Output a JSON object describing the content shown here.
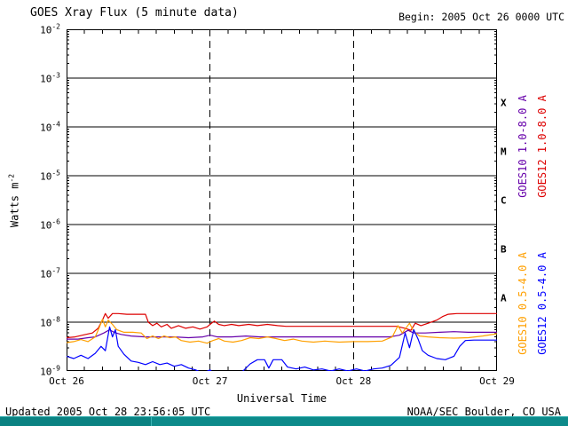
{
  "header": {
    "title": "GOES Xray Flux (5 minute data)",
    "begin": "Begin: 2005 Oct 26 0000 UTC"
  },
  "footer": {
    "updated": "Updated 2005 Oct 28 23:56:05 UTC",
    "credit": "NOAA/SEC Boulder, CO USA"
  },
  "colors": {
    "background": "#ffffff",
    "text": "#000000",
    "grid": "#000000",
    "taskbar": "#0d8a8a"
  },
  "chart_data": {
    "type": "line",
    "title": "GOES Xray Flux (5 minute data)",
    "xlabel": "Universal Time",
    "ylabel": "Watts m^-2",
    "ylabel_base": "Watts m",
    "ylabel_exponent": "-2",
    "ylog": true,
    "ylim": [
      1e-09,
      0.01
    ],
    "y_tick_exponents": [
      "-2",
      "-3",
      "-4",
      "-5",
      "-6",
      "-7",
      "-8",
      "-9"
    ],
    "x_unit": "days since 2005 Oct 26 0000 UTC",
    "xlim_days": [
      0,
      3
    ],
    "x_tick_days": [
      0,
      1,
      2,
      3
    ],
    "x_tick_labels": [
      "Oct 26",
      "Oct 27",
      "Oct 28",
      "Oct 29"
    ],
    "grid": {
      "h_solid_at_decades": true,
      "v_dashed_days": [
        1,
        2
      ]
    },
    "flare_classes": [
      {
        "label": "X",
        "exp_range": [
          -4,
          -3
        ]
      },
      {
        "label": "M",
        "exp_range": [
          -5,
          -4
        ]
      },
      {
        "label": "C",
        "exp_range": [
          -6,
          -5
        ]
      },
      {
        "label": "B",
        "exp_range": [
          -7,
          -6
        ]
      },
      {
        "label": "A",
        "exp_range": [
          -8,
          -7
        ]
      }
    ],
    "series": [
      {
        "name": "GOES10 1.0-8.0 A",
        "color": "#6600aa",
        "points": [
          [
            0,
            4.5e-09
          ],
          [
            0.08,
            4.5e-09
          ],
          [
            0.15,
            4.8e-09
          ],
          [
            0.2,
            5e-09
          ],
          [
            0.26,
            6e-09
          ],
          [
            0.3,
            7e-09
          ],
          [
            0.33,
            6.2e-09
          ],
          [
            0.38,
            5.6e-09
          ],
          [
            0.45,
            5.2e-09
          ],
          [
            0.55,
            5e-09
          ],
          [
            0.65,
            5e-09
          ],
          [
            0.75,
            5e-09
          ],
          [
            0.85,
            4.8e-09
          ],
          [
            0.95,
            5e-09
          ],
          [
            1.0,
            5.4e-09
          ],
          [
            1.05,
            5e-09
          ],
          [
            1.15,
            5e-09
          ],
          [
            1.25,
            5.2e-09
          ],
          [
            1.35,
            5e-09
          ],
          [
            1.45,
            5e-09
          ],
          [
            1.55,
            5e-09
          ],
          [
            1.65,
            5e-09
          ],
          [
            1.75,
            5e-09
          ],
          [
            1.85,
            5e-09
          ],
          [
            1.95,
            5e-09
          ],
          [
            2.05,
            5e-09
          ],
          [
            2.15,
            5e-09
          ],
          [
            2.25,
            5e-09
          ],
          [
            2.32,
            5.4e-09
          ],
          [
            2.38,
            6.8e-09
          ],
          [
            2.42,
            6e-09
          ],
          [
            2.5,
            6e-09
          ],
          [
            2.6,
            6.2e-09
          ],
          [
            2.7,
            6.4e-09
          ],
          [
            2.8,
            6.2e-09
          ],
          [
            2.9,
            6.2e-09
          ],
          [
            3,
            6.2e-09
          ]
        ]
      },
      {
        "name": "GOES12 1.0-8.0 A",
        "color": "#dd0000",
        "points": [
          [
            0,
            4.8e-09
          ],
          [
            0.06,
            5e-09
          ],
          [
            0.12,
            5.5e-09
          ],
          [
            0.18,
            6e-09
          ],
          [
            0.22,
            7.5e-09
          ],
          [
            0.25,
            1.1e-08
          ],
          [
            0.27,
            1.5e-08
          ],
          [
            0.29,
            1.2e-08
          ],
          [
            0.32,
            1.5e-08
          ],
          [
            0.36,
            1.5e-08
          ],
          [
            0.42,
            1.45e-08
          ],
          [
            0.5,
            1.45e-08
          ],
          [
            0.55,
            1.45e-08
          ],
          [
            0.57,
            1e-08
          ],
          [
            0.6,
            8.5e-09
          ],
          [
            0.63,
            9.5e-09
          ],
          [
            0.66,
            8e-09
          ],
          [
            0.7,
            9e-09
          ],
          [
            0.73,
            7.5e-09
          ],
          [
            0.78,
            8.5e-09
          ],
          [
            0.83,
            7.5e-09
          ],
          [
            0.88,
            8e-09
          ],
          [
            0.93,
            7.2e-09
          ],
          [
            0.98,
            8e-09
          ],
          [
            1.0,
            9e-09
          ],
          [
            1.03,
            1.05e-08
          ],
          [
            1.06,
            9e-09
          ],
          [
            1.1,
            8.5e-09
          ],
          [
            1.15,
            9e-09
          ],
          [
            1.2,
            8.5e-09
          ],
          [
            1.27,
            9e-09
          ],
          [
            1.33,
            8.5e-09
          ],
          [
            1.4,
            9e-09
          ],
          [
            1.47,
            8.5e-09
          ],
          [
            1.53,
            8.2e-09
          ],
          [
            1.6,
            8.2e-09
          ],
          [
            1.7,
            8.2e-09
          ],
          [
            1.8,
            8.2e-09
          ],
          [
            1.9,
            8.2e-09
          ],
          [
            2.0,
            8.2e-09
          ],
          [
            2.1,
            8.2e-09
          ],
          [
            2.2,
            8.2e-09
          ],
          [
            2.3,
            8.2e-09
          ],
          [
            2.36,
            7.5e-09
          ],
          [
            2.4,
            6.8e-09
          ],
          [
            2.43,
            9.5e-09
          ],
          [
            2.47,
            8.5e-09
          ],
          [
            2.52,
            9.5e-09
          ],
          [
            2.58,
            1.1e-08
          ],
          [
            2.62,
            1.3e-08
          ],
          [
            2.66,
            1.45e-08
          ],
          [
            2.72,
            1.5e-08
          ],
          [
            2.8,
            1.5e-08
          ],
          [
            2.9,
            1.5e-08
          ],
          [
            3,
            1.5e-08
          ]
        ]
      },
      {
        "name": "GOES10 0.5-4.0 A",
        "color": "#ffa000",
        "points": [
          [
            0,
            3.8e-09
          ],
          [
            0.05,
            4e-09
          ],
          [
            0.1,
            4.4e-09
          ],
          [
            0.15,
            4e-09
          ],
          [
            0.2,
            5e-09
          ],
          [
            0.23,
            8e-09
          ],
          [
            0.25,
            1.15e-08
          ],
          [
            0.27,
            8e-09
          ],
          [
            0.29,
            1.1e-08
          ],
          [
            0.32,
            9e-09
          ],
          [
            0.35,
            7e-09
          ],
          [
            0.4,
            6.2e-09
          ],
          [
            0.46,
            6.2e-09
          ],
          [
            0.52,
            6e-09
          ],
          [
            0.56,
            4.6e-09
          ],
          [
            0.6,
            5.2e-09
          ],
          [
            0.64,
            4.6e-09
          ],
          [
            0.68,
            5.2e-09
          ],
          [
            0.72,
            4.8e-09
          ],
          [
            0.76,
            5e-09
          ],
          [
            0.8,
            4.2e-09
          ],
          [
            0.86,
            3.9e-09
          ],
          [
            0.92,
            4.1e-09
          ],
          [
            0.98,
            3.7e-09
          ],
          [
            1.02,
            4.2e-09
          ],
          [
            1.06,
            4.6e-09
          ],
          [
            1.1,
            4.1e-09
          ],
          [
            1.16,
            3.9e-09
          ],
          [
            1.22,
            4.2e-09
          ],
          [
            1.28,
            4.8e-09
          ],
          [
            1.34,
            4.6e-09
          ],
          [
            1.4,
            5e-09
          ],
          [
            1.46,
            4.6e-09
          ],
          [
            1.52,
            4.2e-09
          ],
          [
            1.58,
            4.5e-09
          ],
          [
            1.64,
            4.1e-09
          ],
          [
            1.72,
            3.9e-09
          ],
          [
            1.8,
            4.1e-09
          ],
          [
            1.9,
            3.9e-09
          ],
          [
            2.0,
            4e-09
          ],
          [
            2.1,
            4e-09
          ],
          [
            2.2,
            4.1e-09
          ],
          [
            2.27,
            5e-09
          ],
          [
            2.31,
            8.5e-09
          ],
          [
            2.34,
            6e-09
          ],
          [
            2.39,
            9.5e-09
          ],
          [
            2.42,
            6.5e-09
          ],
          [
            2.46,
            5.2e-09
          ],
          [
            2.52,
            5e-09
          ],
          [
            2.6,
            4.8e-09
          ],
          [
            2.7,
            4.7e-09
          ],
          [
            2.8,
            4.8e-09
          ],
          [
            2.9,
            5.2e-09
          ],
          [
            3,
            5.8e-09
          ]
        ]
      },
      {
        "name": "GOES12 0.5-4.0 A",
        "color": "#0000ff",
        "points": [
          [
            0,
            2e-09
          ],
          [
            0.05,
            1.8e-09
          ],
          [
            0.1,
            2.1e-09
          ],
          [
            0.15,
            1.8e-09
          ],
          [
            0.2,
            2.3e-09
          ],
          [
            0.24,
            3.2e-09
          ],
          [
            0.27,
            2.6e-09
          ],
          [
            0.3,
            8e-09
          ],
          [
            0.32,
            5e-09
          ],
          [
            0.34,
            7e-09
          ],
          [
            0.36,
            3.2e-09
          ],
          [
            0.4,
            2.2e-09
          ],
          [
            0.45,
            1.6e-09
          ],
          [
            0.5,
            1.5e-09
          ],
          [
            0.55,
            1.35e-09
          ],
          [
            0.6,
            1.55e-09
          ],
          [
            0.65,
            1.35e-09
          ],
          [
            0.7,
            1.45e-09
          ],
          [
            0.75,
            1.25e-09
          ],
          [
            0.8,
            1.35e-09
          ],
          [
            0.85,
            1.15e-09
          ],
          [
            0.9,
            1.05e-09
          ],
          [
            0.95,
            9e-10
          ],
          [
            1.0,
            1.05e-09
          ],
          [
            1.03,
            8.5e-10
          ],
          [
            1.08,
            8e-10
          ],
          [
            1.13,
            9e-10
          ],
          [
            1.18,
            8.5e-10
          ],
          [
            1.23,
            1e-09
          ],
          [
            1.28,
            1.4e-09
          ],
          [
            1.33,
            1.7e-09
          ],
          [
            1.38,
            1.7e-09
          ],
          [
            1.41,
            1.15e-09
          ],
          [
            1.44,
            1.7e-09
          ],
          [
            1.5,
            1.7e-09
          ],
          [
            1.54,
            1.2e-09
          ],
          [
            1.6,
            1.1e-09
          ],
          [
            1.66,
            1.2e-09
          ],
          [
            1.72,
            1.05e-09
          ],
          [
            1.78,
            1.1e-09
          ],
          [
            1.84,
            1e-09
          ],
          [
            1.9,
            1.1e-09
          ],
          [
            1.96,
            1e-09
          ],
          [
            2.02,
            1.1e-09
          ],
          [
            2.08,
            1e-09
          ],
          [
            2.14,
            1.1e-09
          ],
          [
            2.2,
            1.15e-09
          ],
          [
            2.26,
            1.3e-09
          ],
          [
            2.32,
            1.9e-09
          ],
          [
            2.36,
            6e-09
          ],
          [
            2.39,
            3e-09
          ],
          [
            2.42,
            7e-09
          ],
          [
            2.45,
            4.5e-09
          ],
          [
            2.48,
            2.6e-09
          ],
          [
            2.52,
            2.1e-09
          ],
          [
            2.58,
            1.8e-09
          ],
          [
            2.64,
            1.7e-09
          ],
          [
            2.7,
            2e-09
          ],
          [
            2.74,
            3.2e-09
          ],
          [
            2.78,
            4.2e-09
          ],
          [
            2.84,
            4.3e-09
          ],
          [
            2.9,
            4.3e-09
          ],
          [
            2.95,
            4.3e-09
          ],
          [
            3,
            4.3e-09
          ]
        ]
      }
    ]
  }
}
